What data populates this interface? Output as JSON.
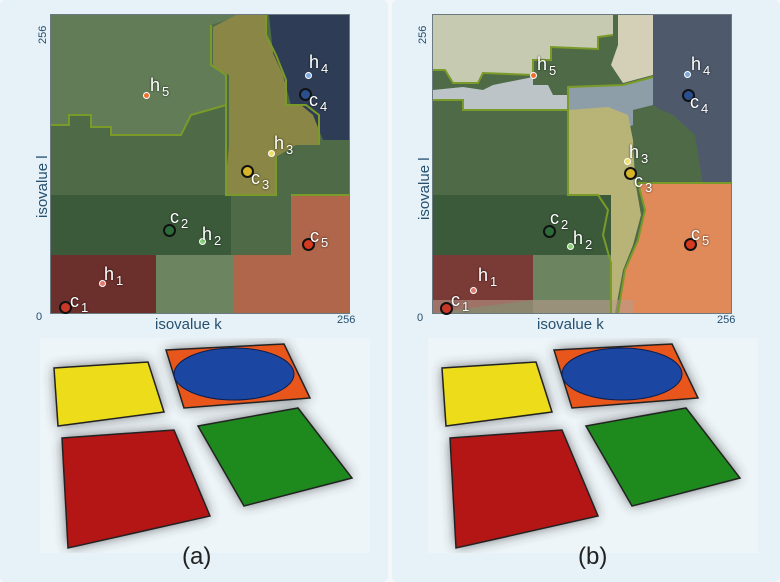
{
  "panels": [
    {
      "caption": "(a)",
      "xlabel": "isovalue k",
      "ylabel": "isovalue l",
      "x_min": "0",
      "x_max": "256",
      "y_max": "256",
      "points": [
        {
          "name": "c",
          "idx": "1"
        },
        {
          "name": "h",
          "idx": "1"
        },
        {
          "name": "c",
          "idx": "2"
        },
        {
          "name": "h",
          "idx": "2"
        },
        {
          "name": "c",
          "idx": "3"
        },
        {
          "name": "h",
          "idx": "3"
        },
        {
          "name": "c",
          "idx": "4"
        },
        {
          "name": "h",
          "idx": "4"
        },
        {
          "name": "c",
          "idx": "5"
        },
        {
          "name": "h",
          "idx": "5"
        }
      ]
    },
    {
      "caption": "(b)",
      "xlabel": "isovalue k",
      "ylabel": "isovalue l",
      "x_min": "0",
      "x_max": "256",
      "y_max": "256",
      "points": [
        {
          "name": "c",
          "idx": "1"
        },
        {
          "name": "h",
          "idx": "1"
        },
        {
          "name": "c",
          "idx": "2"
        },
        {
          "name": "h",
          "idx": "2"
        },
        {
          "name": "c",
          "idx": "3"
        },
        {
          "name": "h",
          "idx": "3"
        },
        {
          "name": "c",
          "idx": "4"
        },
        {
          "name": "h",
          "idx": "4"
        },
        {
          "name": "c",
          "idx": "5"
        },
        {
          "name": "h",
          "idx": "5"
        }
      ]
    }
  ],
  "colors": {
    "red": "#b41515",
    "yellow": "#ecdc1a",
    "orange": "#e8561c",
    "blue": "#1b46a2",
    "green": "#1e8a1e"
  }
}
